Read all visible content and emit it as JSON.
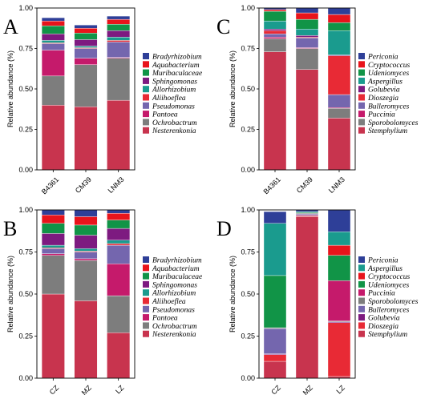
{
  "colors": {
    "Bradyrhizobium": "#2e3f98",
    "Aquabacterium": "#e8141b",
    "Muribaculaceae": "#119447",
    "Sphingomonas": "#7d1a80",
    "Allorhizobium": "#1a9b8e",
    "Aliihoeflea": "#e82a35",
    "Pseudomonas": "#7466ae",
    "Pantoea": "#c51a6b",
    "Ochrobactrum": "#7d7d7d",
    "Nesterenkonia": "#c8344e",
    "Periconia": "#2e3f98",
    "Cryptococcus": "#e8141b",
    "Udeniomyces": "#119447",
    "Aspergillus": "#1a9b8e",
    "Golubevia": "#7d1a80",
    "Dioszegia": "#e82a35",
    "Bulleromyces": "#7466ae",
    "Puccinia": "#c51a6b",
    "Sporobolomyces": "#7d7d7d",
    "Stemphylium": "#c8344e"
  },
  "chart_data": [
    {
      "type": "bar",
      "stacked": true,
      "panel": "A",
      "ylabel": "Relative abundance (%)",
      "ylim": [
        0,
        1
      ],
      "yticks": [
        "0.00",
        "0.25",
        "0.50",
        "0.75",
        "1.00"
      ],
      "categories": [
        "B4361",
        "CM39",
        "LNM3"
      ],
      "legend": [
        "Bradyrhizobium",
        "Aquabacterium",
        "Muribaculaceae",
        "Sphingomonas",
        "Allorhizobium",
        "Aliihoeflea",
        "Pseudomonas",
        "Pantoea",
        "Ochrobactrum",
        "Nesterenkonia"
      ],
      "series": [
        {
          "name": "Nesterenkonia",
          "values": [
            0.4,
            0.39,
            0.43
          ]
        },
        {
          "name": "Ochrobactrum",
          "values": [
            0.18,
            0.26,
            0.26
          ]
        },
        {
          "name": "Pantoea",
          "values": [
            0.16,
            0.04,
            0.005
          ]
        },
        {
          "name": "Pseudomonas",
          "values": [
            0.04,
            0.06,
            0.095
          ]
        },
        {
          "name": "Aliihoeflea",
          "values": [
            0.005,
            0.005,
            0.01
          ]
        },
        {
          "name": "Allorhizobium",
          "values": [
            0.015,
            0.01,
            0.02
          ]
        },
        {
          "name": "Sphingomonas",
          "values": [
            0.04,
            0.04,
            0.04
          ]
        },
        {
          "name": "Muribaculaceae",
          "values": [
            0.05,
            0.04,
            0.04
          ]
        },
        {
          "name": "Aquabacterium",
          "values": [
            0.03,
            0.03,
            0.03
          ]
        },
        {
          "name": "Bradyrhizobium",
          "values": [
            0.02,
            0.02,
            0.02
          ]
        }
      ]
    },
    {
      "type": "bar",
      "stacked": true,
      "panel": "C",
      "ylabel": "Relative abundance (%)",
      "ylim": [
        0,
        1
      ],
      "yticks": [
        "0.00",
        "0.25",
        "0.50",
        "0.75",
        "1.00"
      ],
      "categories": [
        "B4361",
        "CM39",
        "LNM3"
      ],
      "legend": [
        "Periconia",
        "Cryptococcus",
        "Udeniomyces",
        "Aspergillus",
        "Golubevia",
        "Dioszegia",
        "Bulleromyces",
        "Puccinia",
        "Sporobolomyces",
        "Stemphylium"
      ],
      "series": [
        {
          "name": "Stemphylium",
          "values": [
            0.73,
            0.62,
            0.32
          ]
        },
        {
          "name": "Sporobolomyces",
          "values": [
            0.08,
            0.13,
            0.06
          ]
        },
        {
          "name": "Puccinia",
          "values": [
            0.01,
            0.005,
            0.005
          ]
        },
        {
          "name": "Bulleromyces",
          "values": [
            0.02,
            0.06,
            0.08
          ]
        },
        {
          "name": "Dioszegia",
          "values": [
            0.02,
            0.005,
            0.24
          ]
        },
        {
          "name": "Golubevia",
          "values": [
            0.01,
            0.01,
            0.005
          ]
        },
        {
          "name": "Aspergillus",
          "values": [
            0.05,
            0.04,
            0.15
          ]
        },
        {
          "name": "Udeniomyces",
          "values": [
            0.06,
            0.06,
            0.05
          ]
        },
        {
          "name": "Cryptococcus",
          "values": [
            0.01,
            0.04,
            0.05
          ]
        },
        {
          "name": "Periconia",
          "values": [
            0.01,
            0.03,
            0.04
          ]
        }
      ]
    },
    {
      "type": "bar",
      "stacked": true,
      "panel": "B",
      "ylabel": "Relative abundance (%)",
      "ylim": [
        0,
        1
      ],
      "yticks": [
        "0.00",
        "0.25",
        "0.50",
        "0.75",
        "1.00"
      ],
      "categories": [
        "CZ",
        "MZ",
        "LZ"
      ],
      "legend": [
        "Bradyrhizobium",
        "Aquabacterium",
        "Muribaculaceae",
        "Sphingomonas",
        "Allorhizobium",
        "Aliihoeflea",
        "Pseudomonas",
        "Pantoea",
        "Ochrobactrum",
        "Nesterenkonia"
      ],
      "series": [
        {
          "name": "Nesterenkonia",
          "values": [
            0.5,
            0.46,
            0.27
          ]
        },
        {
          "name": "Ochrobactrum",
          "values": [
            0.23,
            0.24,
            0.22
          ]
        },
        {
          "name": "Pantoea",
          "values": [
            0.01,
            0.01,
            0.19
          ]
        },
        {
          "name": "Pseudomonas",
          "values": [
            0.03,
            0.04,
            0.11
          ]
        },
        {
          "name": "Aliihoeflea",
          "values": [
            0.005,
            0.005,
            0.01
          ]
        },
        {
          "name": "Allorhizobium",
          "values": [
            0.015,
            0.015,
            0.02
          ]
        },
        {
          "name": "Sphingomonas",
          "values": [
            0.07,
            0.08,
            0.07
          ]
        },
        {
          "name": "Muribaculaceae",
          "values": [
            0.06,
            0.06,
            0.05
          ]
        },
        {
          "name": "Aquabacterium",
          "values": [
            0.05,
            0.05,
            0.04
          ]
        },
        {
          "name": "Bradyrhizobium",
          "values": [
            0.04,
            0.05,
            0.04
          ]
        }
      ]
    },
    {
      "type": "bar",
      "stacked": true,
      "panel": "D",
      "ylabel": "Relative abundance (%)",
      "ylim": [
        0,
        1
      ],
      "yticks": [
        "0.00",
        "0.25",
        "0.50",
        "0.75",
        "1.00"
      ],
      "categories": [
        "CZ",
        "MZ",
        "LZ"
      ],
      "legend": [
        "Periconia",
        "Aspergillus",
        "Cryptococcus",
        "Udeniomyces",
        "Puccinia",
        "Sporobolomyces",
        "Bulleromyces",
        "Golubevia",
        "Dioszegia",
        "Stemphylium"
      ],
      "series": [
        {
          "name": "Stemphylium",
          "values": [
            0.1,
            0.96,
            0.01
          ]
        },
        {
          "name": "Dioszegia",
          "values": [
            0.04,
            0.005,
            0.32
          ]
        },
        {
          "name": "Golubevia",
          "values": [
            0.005,
            0.005,
            0.005
          ]
        },
        {
          "name": "Bulleromyces",
          "values": [
            0.15,
            0.005,
            0.0
          ]
        },
        {
          "name": "Sporobolomyces",
          "values": [
            0.005,
            0.005,
            0.005
          ]
        },
        {
          "name": "Puccinia",
          "values": [
            0.0,
            0.0,
            0.24
          ]
        },
        {
          "name": "Udeniomyces",
          "values": [
            0.31,
            0.005,
            0.15
          ]
        },
        {
          "name": "Cryptococcus",
          "values": [
            0.0,
            0.0,
            0.06
          ]
        },
        {
          "name": "Aspergillus",
          "values": [
            0.31,
            0.005,
            0.08
          ]
        },
        {
          "name": "Periconia",
          "values": [
            0.07,
            0.01,
            0.14
          ]
        }
      ]
    }
  ]
}
